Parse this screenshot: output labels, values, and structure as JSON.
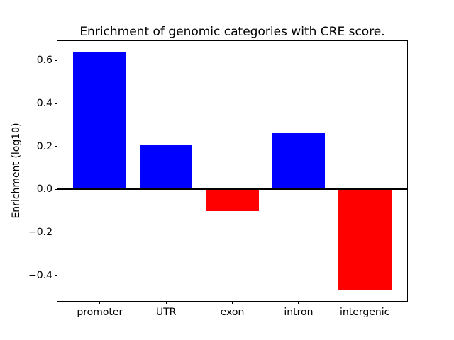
{
  "chart_data": {
    "type": "bar",
    "title": "Enrichment of genomic categories with CRE score.",
    "xlabel": "",
    "ylabel": "Enrichment (log10)",
    "categories": [
      "promoter",
      "UTR",
      "exon",
      "intron",
      "intergenic"
    ],
    "values": [
      0.64,
      0.21,
      -0.1,
      0.26,
      -0.47
    ],
    "bar_colors": [
      "#0000ff",
      "#0000ff",
      "#ff0000",
      "#0000ff",
      "#ff0000"
    ],
    "positive_color": "#0000ff",
    "negative_color": "#ff0000",
    "ylim": [
      -0.52,
      0.69
    ],
    "yticks": [
      0.6,
      0.4,
      0.2,
      0.0,
      -0.2,
      -0.4
    ],
    "ytick_labels": [
      "0.6",
      "0.4",
      "0.2",
      "0.0",
      "−0.2",
      "−0.4"
    ],
    "bar_width_fraction": 0.8,
    "zero_line": true,
    "grid": false,
    "legend": null,
    "background_color": "#ffffff"
  }
}
